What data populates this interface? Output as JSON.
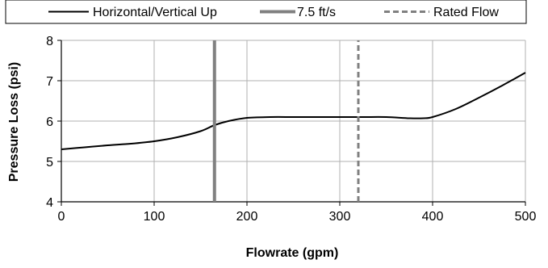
{
  "chart_data": {
    "type": "line",
    "title": "",
    "xlabel": "Flowrate (gpm)",
    "ylabel": "Pressure Loss (psi)",
    "xlim": [
      0,
      500
    ],
    "ylim": [
      4,
      8
    ],
    "x_ticks": [
      0,
      100,
      200,
      300,
      400,
      500
    ],
    "y_ticks": [
      4,
      5,
      6,
      7,
      8
    ],
    "x_tick_labels": [
      "0",
      "100",
      "200",
      "300",
      "400",
      "500"
    ],
    "y_tick_labels": [
      "4",
      "5",
      "6",
      "7",
      "8"
    ],
    "grid": true,
    "legend_position": "top",
    "series": [
      {
        "name": "Horizontal/Vertical Up",
        "style": "solid",
        "color": "#000000",
        "x": [
          0,
          25,
          50,
          75,
          100,
          125,
          150,
          165,
          180,
          200,
          225,
          250,
          275,
          300,
          325,
          350,
          375,
          390,
          400,
          425,
          450,
          475,
          500
        ],
        "y": [
          5.3,
          5.35,
          5.4,
          5.44,
          5.5,
          5.6,
          5.75,
          5.9,
          6.0,
          6.08,
          6.1,
          6.1,
          6.1,
          6.1,
          6.1,
          6.1,
          6.07,
          6.07,
          6.1,
          6.3,
          6.58,
          6.88,
          7.2
        ]
      },
      {
        "name": "7.5 ft/s",
        "style": "solid-thick",
        "color": "#808080",
        "x": [
          165,
          165
        ],
        "y": [
          4,
          8
        ]
      },
      {
        "name": "Rated Flow",
        "style": "dashed",
        "color": "#808080",
        "x": [
          320,
          320
        ],
        "y": [
          4,
          8
        ]
      }
    ]
  }
}
